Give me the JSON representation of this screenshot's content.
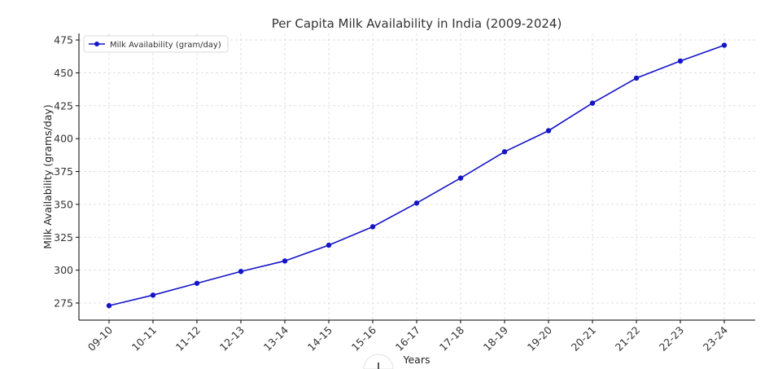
{
  "chart_data": {
    "type": "line",
    "title": "Per Capita Milk Availability in India (2009-2024)",
    "xlabel": "Years",
    "ylabel": "Milk Availability (grams/day)",
    "categories": [
      "09-10",
      "10-11",
      "11-12",
      "12-13",
      "13-14",
      "14-15",
      "15-16",
      "16-17",
      "17-18",
      "18-19",
      "19-20",
      "20-21",
      "21-22",
      "22-23",
      "23-24"
    ],
    "series": [
      {
        "name": "Milk Availability (gram/day)",
        "color": "#1515c8",
        "values": [
          273,
          281,
          290,
          299,
          307,
          319,
          333,
          351,
          370,
          390,
          406,
          427,
          446,
          459,
          471
        ]
      }
    ],
    "ylim": [
      262,
      480
    ],
    "yticks": [
      275,
      300,
      325,
      350,
      375,
      400,
      425,
      450,
      475
    ],
    "grid": true,
    "legend_position": "top-left"
  }
}
